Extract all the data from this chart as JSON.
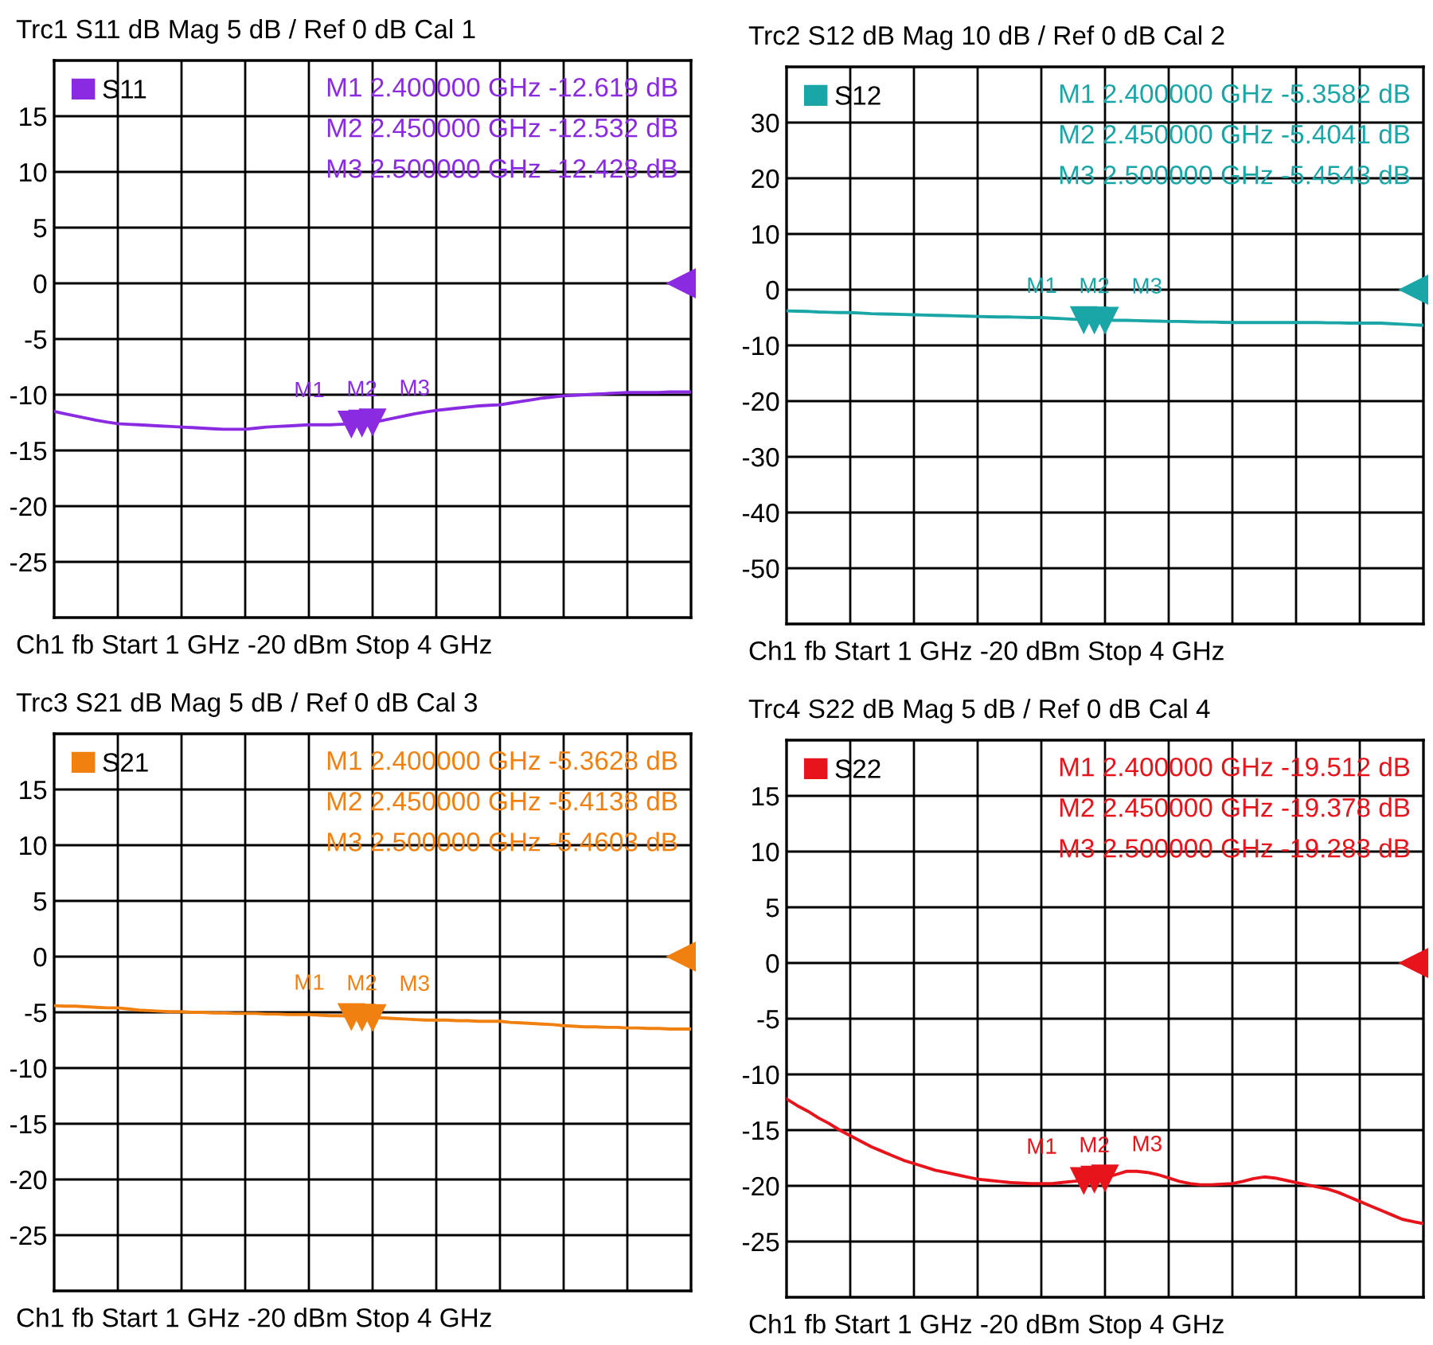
{
  "chart_data": [
    {
      "type": "line",
      "title": "Trc1 S11 dB Mag 5 dB / Ref 0 dB Cal 1",
      "xlabel": "Ch1 fb Start 1 GHz -20 dBm Stop 4 GHz",
      "categories": [
        null,
        null,
        null,
        null,
        null,
        null,
        null,
        null,
        null,
        null,
        null,
        null,
        null,
        null,
        null,
        null,
        null,
        null,
        null,
        null,
        null,
        null,
        null,
        null,
        null,
        null,
        null,
        null,
        null,
        null,
        null,
        null,
        null,
        null,
        null,
        null,
        null,
        null,
        null,
        null,
        null,
        null,
        null,
        null,
        null,
        null,
        null,
        null,
        null,
        null,
        null,
        null,
        null,
        null,
        null,
        null,
        null,
        null,
        null,
        null,
        null
      ],
      "series": [
        {
          "name": "S11",
          "color": "#8a2be2",
          "values": [
            -11.5,
            -11.7,
            -11.9,
            -12.1,
            -12.3,
            -12.45,
            -12.6,
            -12.65,
            -12.7,
            -12.75,
            -12.8,
            -12.85,
            -12.9,
            -12.95,
            -13.0,
            -13.05,
            -13.1,
            -13.1,
            -13.1,
            -13.0,
            -12.9,
            -12.85,
            -12.8,
            -12.75,
            -12.7,
            -12.7,
            -12.7,
            -12.65,
            -12.619,
            -12.532,
            -12.428,
            -12.3,
            -12.1,
            -11.9,
            -11.7,
            -11.55,
            -11.4,
            -11.3,
            -11.2,
            -11.1,
            -11.0,
            -10.95,
            -10.9,
            -10.75,
            -10.6,
            -10.45,
            -10.3,
            -10.2,
            -10.1,
            -10.05,
            -10.0,
            -9.95,
            -9.9,
            -9.85,
            -9.8,
            -9.8,
            -9.8,
            -9.8,
            -9.75,
            -9.75,
            -9.75
          ],
          "value_labels": [
            null,
            null,
            null,
            null,
            null,
            null,
            null,
            null,
            null,
            null,
            null,
            null,
            null,
            null,
            null,
            null,
            null,
            null,
            null,
            null,
            null,
            null,
            null,
            null,
            null,
            null,
            null,
            null,
            "M1",
            "M2",
            "M3",
            null,
            null,
            null,
            null,
            null,
            null,
            null,
            null,
            null,
            null,
            null,
            null,
            null,
            null,
            null,
            null,
            null,
            null,
            null,
            null,
            null,
            null,
            null,
            null,
            null,
            null,
            null,
            null,
            null,
            null
          ]
        }
      ],
      "ylim": [
        -30,
        20
      ],
      "yticks": [
        15,
        10,
        5,
        0,
        -5,
        -10,
        -15,
        -20,
        -25
      ],
      "tick_labels": "y",
      "grid": true,
      "legend": "top left",
      "marker": "none",
      "line_style": "solid",
      "annotations": [
        "M1 2.400000 GHz -12.619 dB",
        "M2 2.450000 GHz -12.532 dB",
        "M3 2.500000 GHz -12.428 dB"
      ]
    },
    {
      "type": "line",
      "title": "Trc2 S12 dB Mag 10 dB / Ref 0 dB Cal 2",
      "xlabel": "Ch1 fb Start 1 GHz -20 dBm Stop 4 GHz",
      "categories": [
        null,
        null,
        null,
        null,
        null,
        null,
        null,
        null,
        null,
        null,
        null,
        null,
        null,
        null,
        null,
        null,
        null,
        null,
        null,
        null,
        null,
        null,
        null,
        null,
        null,
        null,
        null,
        null,
        null,
        null,
        null,
        null,
        null,
        null,
        null,
        null,
        null,
        null,
        null,
        null,
        null,
        null,
        null,
        null,
        null,
        null,
        null,
        null,
        null,
        null,
        null,
        null,
        null,
        null,
        null,
        null,
        null,
        null,
        null,
        null,
        null
      ],
      "series": [
        {
          "name": "S12",
          "color": "#1aa6a6",
          "values": [
            -3.8,
            -3.85,
            -3.9,
            -4.0,
            -4.05,
            -4.1,
            -4.1,
            -4.2,
            -4.3,
            -4.35,
            -4.4,
            -4.45,
            -4.5,
            -4.55,
            -4.6,
            -4.65,
            -4.7,
            -4.75,
            -4.8,
            -4.85,
            -4.9,
            -4.9,
            -4.95,
            -5.0,
            -5.0,
            -5.1,
            -5.2,
            -5.3,
            -5.3582,
            -5.4041,
            -5.4543,
            -5.5,
            -5.5,
            -5.55,
            -5.6,
            -5.65,
            -5.7,
            -5.7,
            -5.75,
            -5.8,
            -5.8,
            -5.85,
            -5.9,
            -5.9,
            -5.9,
            -5.9,
            -5.9,
            -5.9,
            -5.9,
            -5.9,
            -5.9,
            -5.95,
            -5.95,
            -6.0,
            -6.0,
            -6.0,
            -6.0,
            -6.1,
            -6.2,
            -6.3,
            -6.4
          ],
          "value_labels": [
            null,
            null,
            null,
            null,
            null,
            null,
            null,
            null,
            null,
            null,
            null,
            null,
            null,
            null,
            null,
            null,
            null,
            null,
            null,
            null,
            null,
            null,
            null,
            null,
            null,
            null,
            null,
            null,
            "M1",
            "M2",
            "M3",
            null,
            null,
            null,
            null,
            null,
            null,
            null,
            null,
            null,
            null,
            null,
            null,
            null,
            null,
            null,
            null,
            null,
            null,
            null,
            null,
            null,
            null,
            null,
            null,
            null,
            null,
            null,
            null,
            null,
            null
          ]
        }
      ],
      "ylim": [
        -60,
        40
      ],
      "yticks": [
        30,
        20,
        10,
        0,
        -10,
        -20,
        -30,
        -40,
        -50
      ],
      "tick_labels": "y",
      "grid": true,
      "legend": "top left",
      "marker": "none",
      "line_style": "solid",
      "annotations": [
        "M1 2.400000 GHz -5.3582 dB",
        "M2 2.450000 GHz -5.4041 dB",
        "M3 2.500000 GHz -5.4543 dB"
      ]
    },
    {
      "type": "line",
      "title": "Trc3 S21 dB Mag 5 dB / Ref 0 dB Cal 3",
      "xlabel": "Ch1 fb Start 1 GHz -20 dBm Stop 4 GHz",
      "categories": [
        null,
        null,
        null,
        null,
        null,
        null,
        null,
        null,
        null,
        null,
        null,
        null,
        null,
        null,
        null,
        null,
        null,
        null,
        null,
        null,
        null,
        null,
        null,
        null,
        null,
        null,
        null,
        null,
        null,
        null,
        null,
        null,
        null,
        null,
        null,
        null,
        null,
        null,
        null,
        null,
        null,
        null,
        null,
        null,
        null,
        null,
        null,
        null,
        null,
        null,
        null,
        null,
        null,
        null,
        null,
        null,
        null,
        null,
        null,
        null,
        null
      ],
      "series": [
        {
          "name": "S21",
          "color": "#f08010",
          "values": [
            -4.4,
            -4.45,
            -4.45,
            -4.5,
            -4.55,
            -4.6,
            -4.6,
            -4.7,
            -4.8,
            -4.85,
            -4.9,
            -4.95,
            -4.95,
            -5.0,
            -5.0,
            -5.05,
            -5.05,
            -5.1,
            -5.1,
            -5.1,
            -5.15,
            -5.15,
            -5.2,
            -5.2,
            -5.2,
            -5.25,
            -5.3,
            -5.3,
            -5.3628,
            -5.4138,
            -5.4603,
            -5.5,
            -5.55,
            -5.6,
            -5.65,
            -5.7,
            -5.7,
            -5.7,
            -5.75,
            -5.75,
            -5.8,
            -5.8,
            -5.8,
            -5.9,
            -5.95,
            -6.0,
            -6.05,
            -6.1,
            -6.2,
            -6.25,
            -6.3,
            -6.3,
            -6.35,
            -6.35,
            -6.4,
            -6.4,
            -6.45,
            -6.45,
            -6.5,
            -6.5,
            -6.5
          ],
          "value_labels": [
            null,
            null,
            null,
            null,
            null,
            null,
            null,
            null,
            null,
            null,
            null,
            null,
            null,
            null,
            null,
            null,
            null,
            null,
            null,
            null,
            null,
            null,
            null,
            null,
            null,
            null,
            null,
            null,
            "M1",
            "M2",
            "M3",
            null,
            null,
            null,
            null,
            null,
            null,
            null,
            null,
            null,
            null,
            null,
            null,
            null,
            null,
            null,
            null,
            null,
            null,
            null,
            null,
            null,
            null,
            null,
            null,
            null,
            null,
            null,
            null,
            null,
            null
          ]
        }
      ],
      "ylim": [
        -30,
        20
      ],
      "yticks": [
        15,
        10,
        5,
        0,
        -5,
        -10,
        -15,
        -20,
        -25
      ],
      "tick_labels": "y",
      "grid": true,
      "legend": "top left",
      "marker": "none",
      "line_style": "solid",
      "annotations": [
        "M1 2.400000 GHz -5.3628 dB",
        "M2 2.450000 GHz -5.4138 dB",
        "M3 2.500000 GHz -5.4603 dB"
      ]
    },
    {
      "type": "line",
      "title": "Trc4 S22 dB Mag 5 dB / Ref 0 dB Cal 4",
      "xlabel": "Ch1 fb Start 1 GHz -20 dBm Stop 4 GHz",
      "categories": [
        null,
        null,
        null,
        null,
        null,
        null,
        null,
        null,
        null,
        null,
        null,
        null,
        null,
        null,
        null,
        null,
        null,
        null,
        null,
        null,
        null,
        null,
        null,
        null,
        null,
        null,
        null,
        null,
        null,
        null,
        null,
        null,
        null,
        null,
        null,
        null,
        null,
        null,
        null,
        null,
        null,
        null,
        null,
        null,
        null,
        null,
        null,
        null,
        null,
        null,
        null,
        null,
        null,
        null,
        null,
        null,
        null,
        null,
        null,
        null,
        null
      ],
      "series": [
        {
          "name": "S22",
          "color": "#e8141c",
          "values": [
            -12.2,
            -12.8,
            -13.3,
            -13.9,
            -14.4,
            -15.0,
            -15.5,
            -16.0,
            -16.5,
            -16.9,
            -17.3,
            -17.7,
            -18.0,
            -18.3,
            -18.6,
            -18.8,
            -19.0,
            -19.2,
            -19.4,
            -19.5,
            -19.6,
            -19.7,
            -19.75,
            -19.8,
            -19.8,
            -19.8,
            -19.7,
            -19.6,
            -19.512,
            -19.378,
            -19.283,
            -19.0,
            -18.7,
            -18.7,
            -18.8,
            -19.0,
            -19.3,
            -19.6,
            -19.8,
            -19.9,
            -19.9,
            -19.85,
            -19.8,
            -19.6,
            -19.35,
            -19.2,
            -19.3,
            -19.5,
            -19.7,
            -19.9,
            -20.1,
            -20.3,
            -20.6,
            -21.0,
            -21.4,
            -21.8,
            -22.2,
            -22.6,
            -23.0,
            -23.2,
            -23.4
          ],
          "value_labels": [
            null,
            null,
            null,
            null,
            null,
            null,
            null,
            null,
            null,
            null,
            null,
            null,
            null,
            null,
            null,
            null,
            null,
            null,
            null,
            null,
            null,
            null,
            null,
            null,
            null,
            null,
            null,
            null,
            "M1",
            "M2",
            "M3",
            null,
            null,
            null,
            null,
            null,
            null,
            null,
            null,
            null,
            null,
            null,
            null,
            null,
            null,
            null,
            null,
            null,
            null,
            null,
            null,
            null,
            null,
            null,
            null,
            null,
            null,
            null,
            null,
            null,
            null
          ]
        }
      ],
      "ylim": [
        -30,
        20
      ],
      "yticks": [
        15,
        10,
        5,
        0,
        -5,
        -10,
        -15,
        -20,
        -25
      ],
      "tick_labels": "y",
      "grid": true,
      "legend": "top left",
      "marker": "none",
      "line_style": "solid",
      "annotations": [
        "M1 2.400000 GHz -19.512 dB",
        "M2 2.450000 GHz -19.378 dB",
        "M3 2.500000 GHz -19.283 dB"
      ]
    }
  ]
}
